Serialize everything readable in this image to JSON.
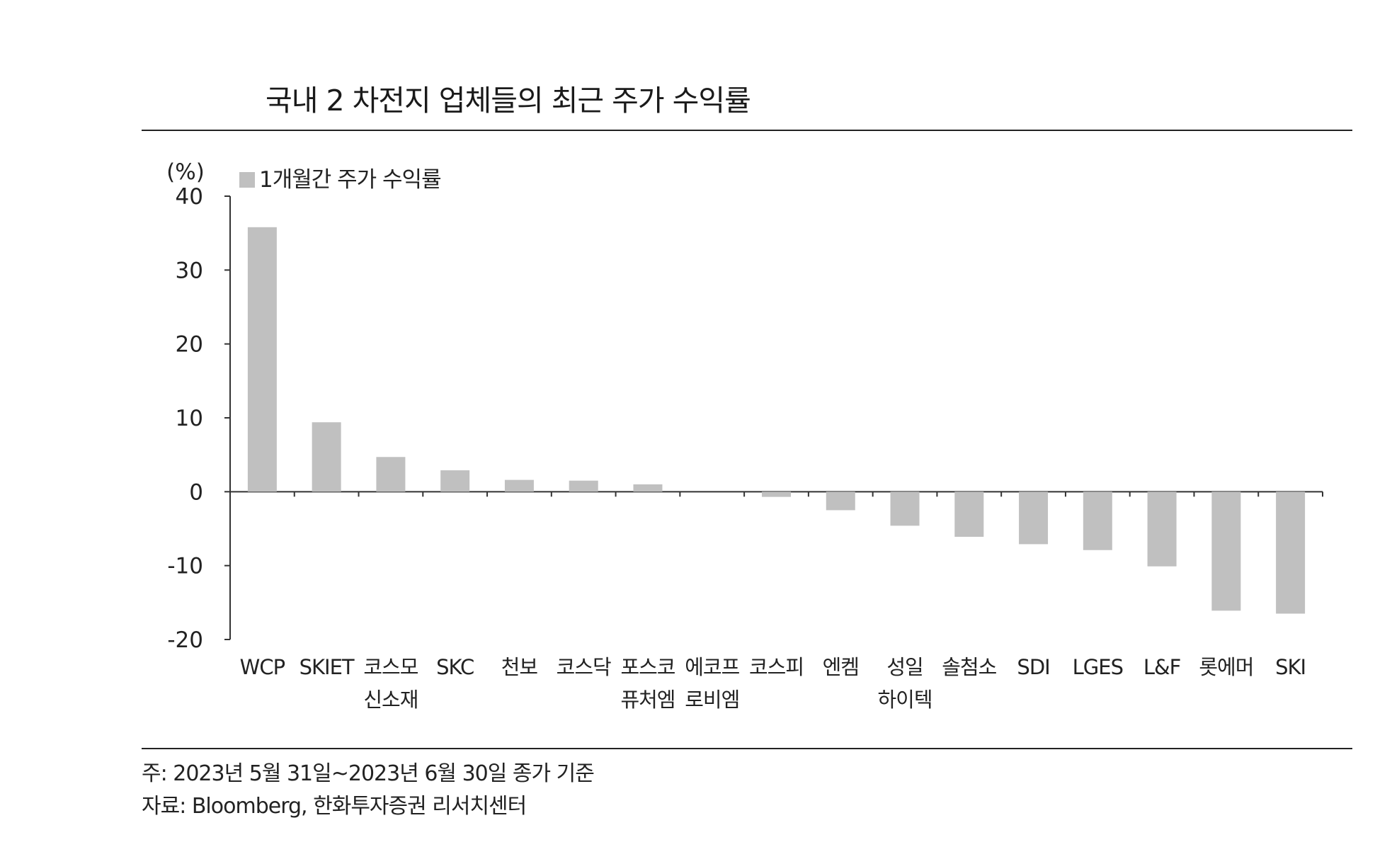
{
  "title": "국내 2 차전지 업체들의 최근 주가 수익률",
  "note": "주: 2023년 5월 31일~2023년 6월 30일 종가 기준",
  "source": "자료: Bloomberg, 한화투자증권 리서치센터",
  "colors": {
    "bar": "#c0c0c0",
    "axis": "#333333",
    "rule": "#222222"
  },
  "chart_data": {
    "type": "bar",
    "title": "국내 2 차전지 업체들의 최근 주가 수익률",
    "ylabel": "(%)",
    "xlabel": "",
    "ylim": [
      -20,
      40
    ],
    "yticks": [
      40,
      30,
      20,
      10,
      0,
      -10,
      -20
    ],
    "grid": false,
    "legend_position": "top-left",
    "categories": [
      [
        "WCP"
      ],
      [
        "SKIET"
      ],
      [
        "코스모",
        "신소재"
      ],
      [
        "SKC"
      ],
      [
        "천보"
      ],
      [
        "코스닥"
      ],
      [
        "포스코",
        "퓨처엠"
      ],
      [
        "에코프",
        "로비엠"
      ],
      [
        "코스피"
      ],
      [
        "엔켐"
      ],
      [
        "성일",
        "하이텍"
      ],
      [
        "솔첨소"
      ],
      [
        "SDI"
      ],
      [
        "LGES"
      ],
      [
        "L&F"
      ],
      [
        "롯에머"
      ],
      [
        "SKI"
      ]
    ],
    "series": [
      {
        "name": "1개월간 주가 수익률",
        "values": [
          35.8,
          9.4,
          4.7,
          2.9,
          1.6,
          1.5,
          1.0,
          0.0,
          -0.7,
          -2.5,
          -4.6,
          -6.1,
          -7.1,
          -7.9,
          -10.1,
          -16.1,
          -16.5
        ]
      }
    ]
  }
}
